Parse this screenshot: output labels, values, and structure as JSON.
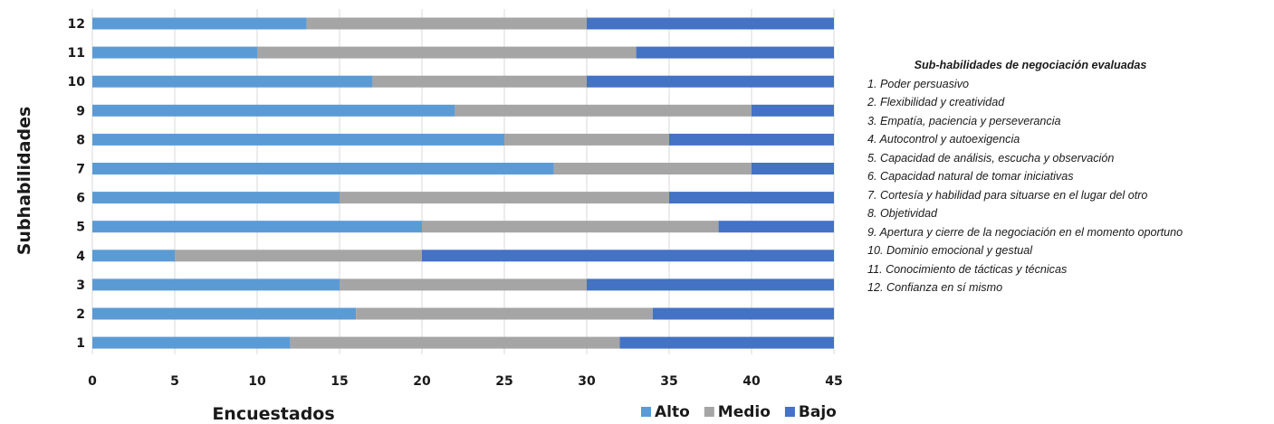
{
  "chart_data": {
    "type": "bar",
    "orientation": "horizontal",
    "stacked": true,
    "categories": [
      "1",
      "2",
      "3",
      "4",
      "5",
      "6",
      "7",
      "8",
      "9",
      "10",
      "11",
      "12"
    ],
    "series": [
      {
        "name": "Alto",
        "color": "#5b9bd5",
        "values": [
          12,
          16,
          15,
          5,
          20,
          15,
          28,
          25,
          22,
          17,
          10,
          13
        ]
      },
      {
        "name": "Medio",
        "color": "#a5a5a5",
        "values": [
          20,
          18,
          15,
          15,
          18,
          20,
          12,
          10,
          18,
          13,
          23,
          17
        ]
      },
      {
        "name": "Bajo",
        "color": "#4472c4",
        "values": [
          13,
          11,
          15,
          25,
          7,
          10,
          5,
          10,
          5,
          15,
          12,
          15
        ]
      }
    ],
    "xlabel": "Encuestados",
    "ylabel": "Subhabilidades",
    "xlim": [
      0,
      45
    ],
    "xticks": [
      0,
      5,
      10,
      15,
      20,
      25,
      30,
      35,
      40,
      45
    ],
    "grid": true,
    "legend_position": "bottom-right"
  },
  "side_legend": {
    "title": "Sub-habilidades de negociación evaluadas",
    "items": [
      "1. Poder persuasivo",
      "2. Flexibilidad y creatividad",
      "3. Empatía, paciencia y perseverancia",
      "4. Autocontrol y autoexigencia",
      "5. Capacidad de análisis, escucha y observación",
      "6. Capacidad natural de tomar iniciativas",
      "7. Cortesía y habilidad para situarse en el lugar del otro",
      "8. Objetividad",
      "9. Apertura y cierre de la negociación en el momento oportuno",
      "10. Dominio emocional y gestual",
      "11. Conocimiento de tácticas y técnicas",
      "12. Confianza en sí mismo"
    ]
  }
}
